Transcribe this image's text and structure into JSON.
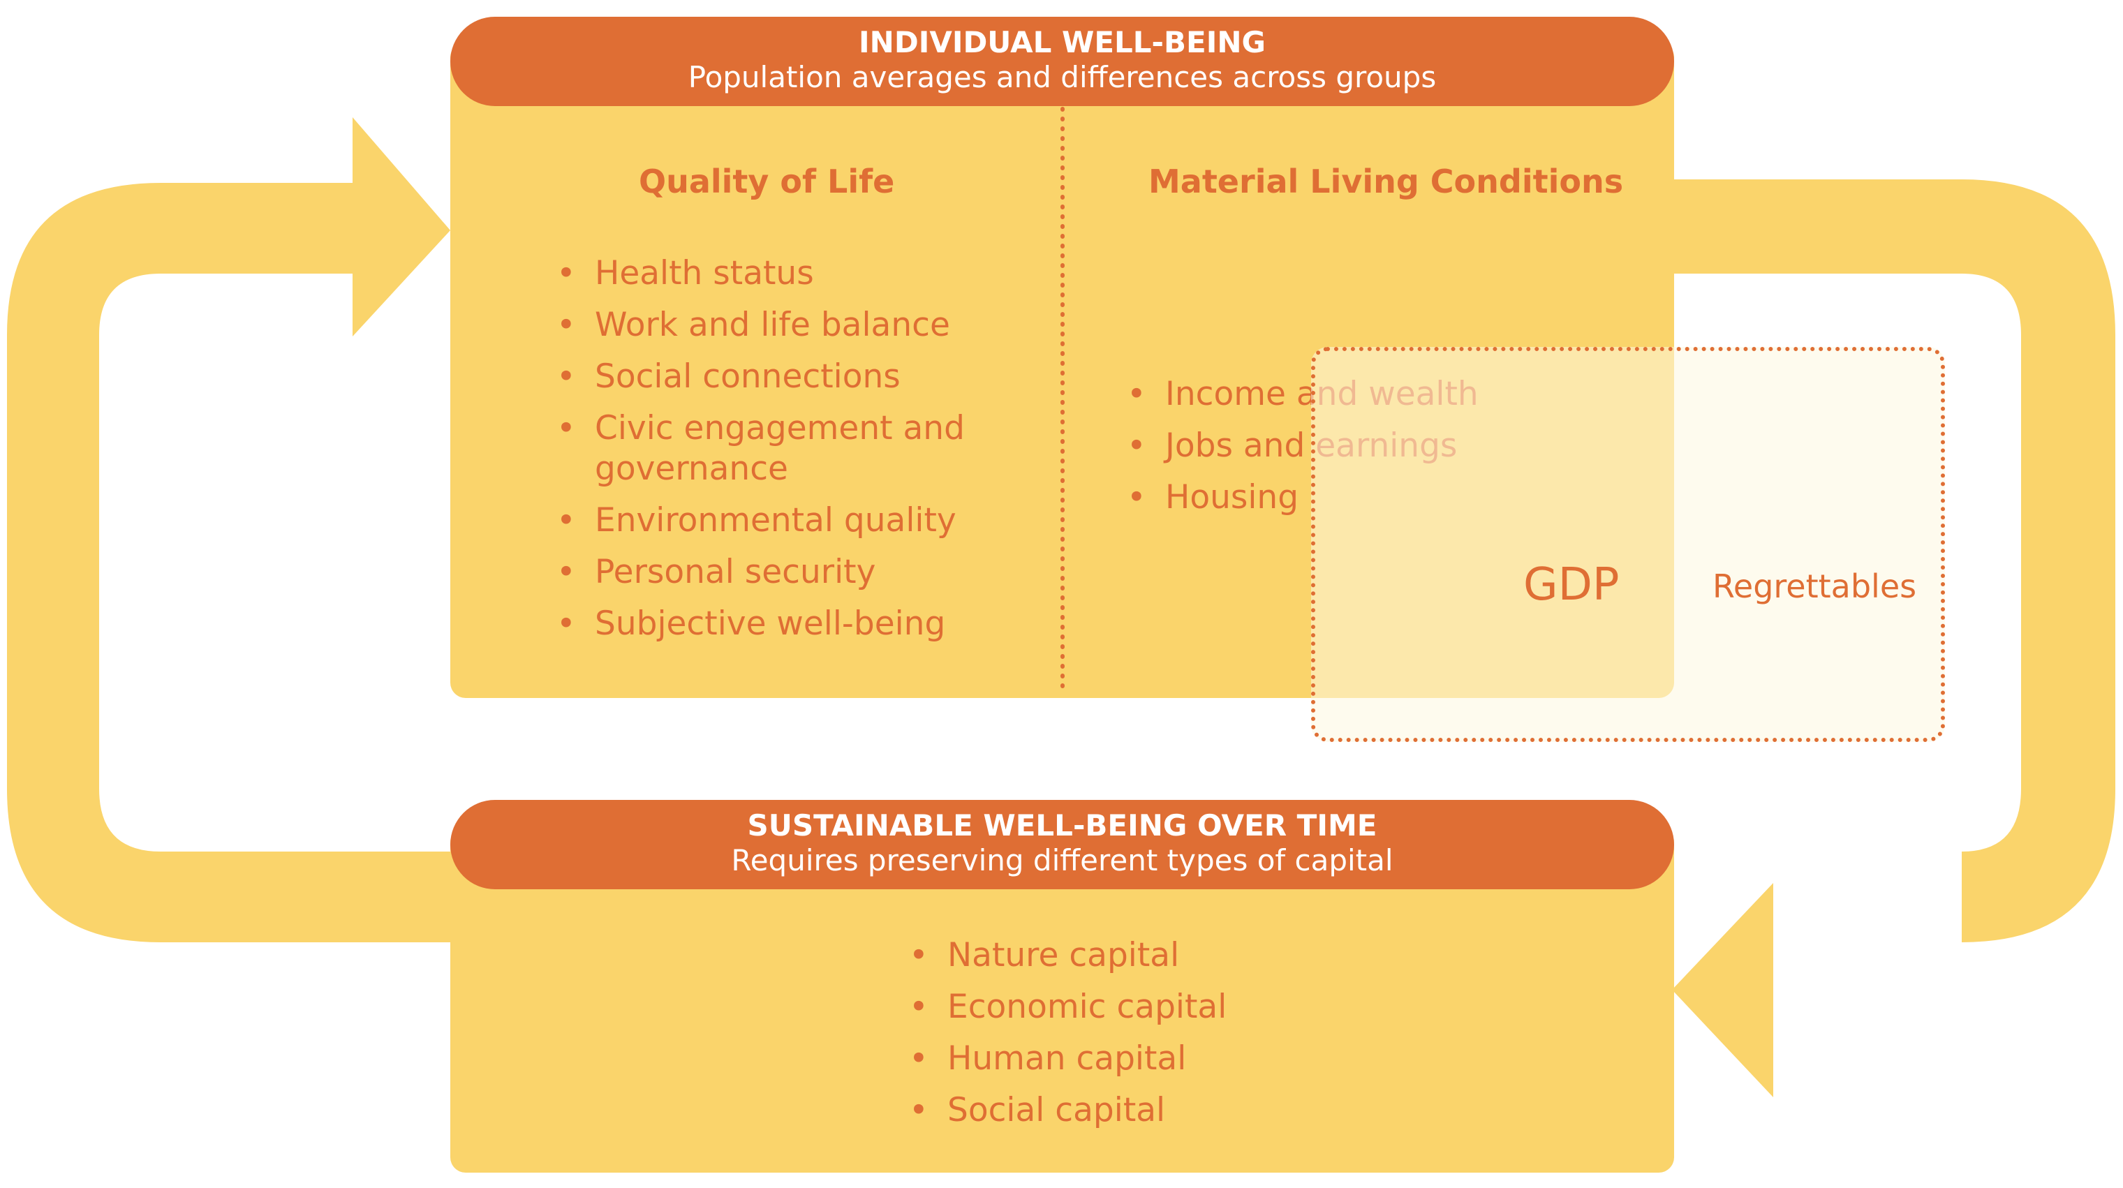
{
  "colors": {
    "panel": "#fad46b",
    "header": "#df6e34",
    "text": "#df6e34",
    "arrow": "#fad46b",
    "header_text": "#ffffff"
  },
  "individual": {
    "title": "INDIVIDUAL WELL-BEING",
    "subtitle": "Population averages and differences across groups",
    "quality_of_life": {
      "title": "Quality of Life",
      "items": [
        "Health status",
        "Work and life balance",
        "Social connections",
        "Civic engagement and governance",
        "Environmental quality",
        "Personal security",
        "Subjective well-being"
      ]
    },
    "material_living": {
      "title": "Material Living Conditions",
      "items": [
        "Income and wealth",
        "Jobs and earnings",
        "Housing"
      ]
    }
  },
  "gdp": {
    "label": "GDP",
    "regrettables": "Regrettables"
  },
  "sustainable": {
    "title": "SUSTAINABLE WELL-BEING OVER TIME",
    "subtitle": "Requires preserving different types of capital",
    "items": [
      "Nature capital",
      "Economic capital",
      "Human capital",
      "Social capital"
    ]
  }
}
